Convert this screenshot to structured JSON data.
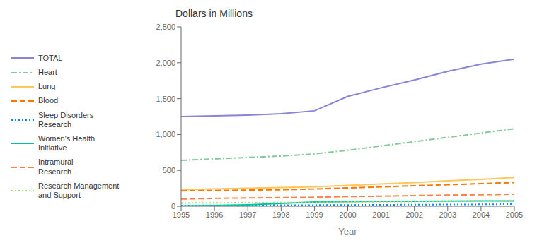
{
  "chart_data": {
    "type": "line",
    "title": "Dollars in Millions",
    "xlabel": "Year",
    "x": [
      1995,
      1996,
      1997,
      1998,
      1999,
      2000,
      2001,
      2002,
      2003,
      2004,
      2005
    ],
    "series": [
      {
        "name": "TOTAL",
        "color": "#8884d8",
        "line_style": "solid",
        "values": [
          1250,
          1260,
          1270,
          1290,
          1330,
          1530,
          1650,
          1760,
          1880,
          1980,
          2050
        ]
      },
      {
        "name": "Heart",
        "color": "#82ca9d",
        "line_style": "dashdot",
        "values": [
          640,
          660,
          680,
          700,
          730,
          780,
          840,
          900,
          960,
          1020,
          1080
        ]
      },
      {
        "name": "Lung",
        "color": "#ffc658",
        "line_style": "solid",
        "values": [
          230,
          240,
          250,
          260,
          270,
          290,
          310,
          330,
          355,
          375,
          400
        ]
      },
      {
        "name": "Blood",
        "color": "#ff7300",
        "line_style": "dashed",
        "values": [
          215,
          220,
          225,
          230,
          240,
          255,
          270,
          285,
          300,
          315,
          330
        ]
      },
      {
        "name": "Sleep Disorders\nResearch",
        "color": "#0088fe",
        "line_style": "dotted",
        "values": [
          10,
          12,
          14,
          15,
          16,
          18,
          20,
          22,
          24,
          26,
          30
        ]
      },
      {
        "name": "Women's Health\nInitiative",
        "color": "#00c49f",
        "line_style": "solid",
        "values": [
          5,
          10,
          20,
          40,
          60,
          65,
          68,
          70,
          72,
          74,
          75
        ]
      },
      {
        "name": "Intramural\nResearch",
        "color": "#ff8042",
        "line_style": "dashed",
        "values": [
          100,
          110,
          115,
          120,
          125,
          135,
          140,
          148,
          155,
          160,
          168
        ]
      },
      {
        "name": "Research Management\nand Support",
        "color": "#a4de6c",
        "line_style": "dotted",
        "values": [
          45,
          47,
          49,
          51,
          53,
          58,
          62,
          65,
          68,
          70,
          73
        ]
      }
    ],
    "xlim": [
      1995,
      2005
    ],
    "xticks": [
      1995,
      1996,
      1997,
      1998,
      1999,
      2000,
      2001,
      2002,
      2003,
      2004,
      2005
    ],
    "ylim": [
      0,
      2500
    ],
    "yticks": [
      0,
      500,
      {
        "value": 1000,
        "label": "1,000"
      },
      {
        "value": 1500,
        "label": "1,500"
      },
      {
        "value": 2000,
        "label": "2,000"
      },
      {
        "value": 2500,
        "label": "2,500"
      }
    ],
    "grid": false,
    "legend": "left"
  }
}
